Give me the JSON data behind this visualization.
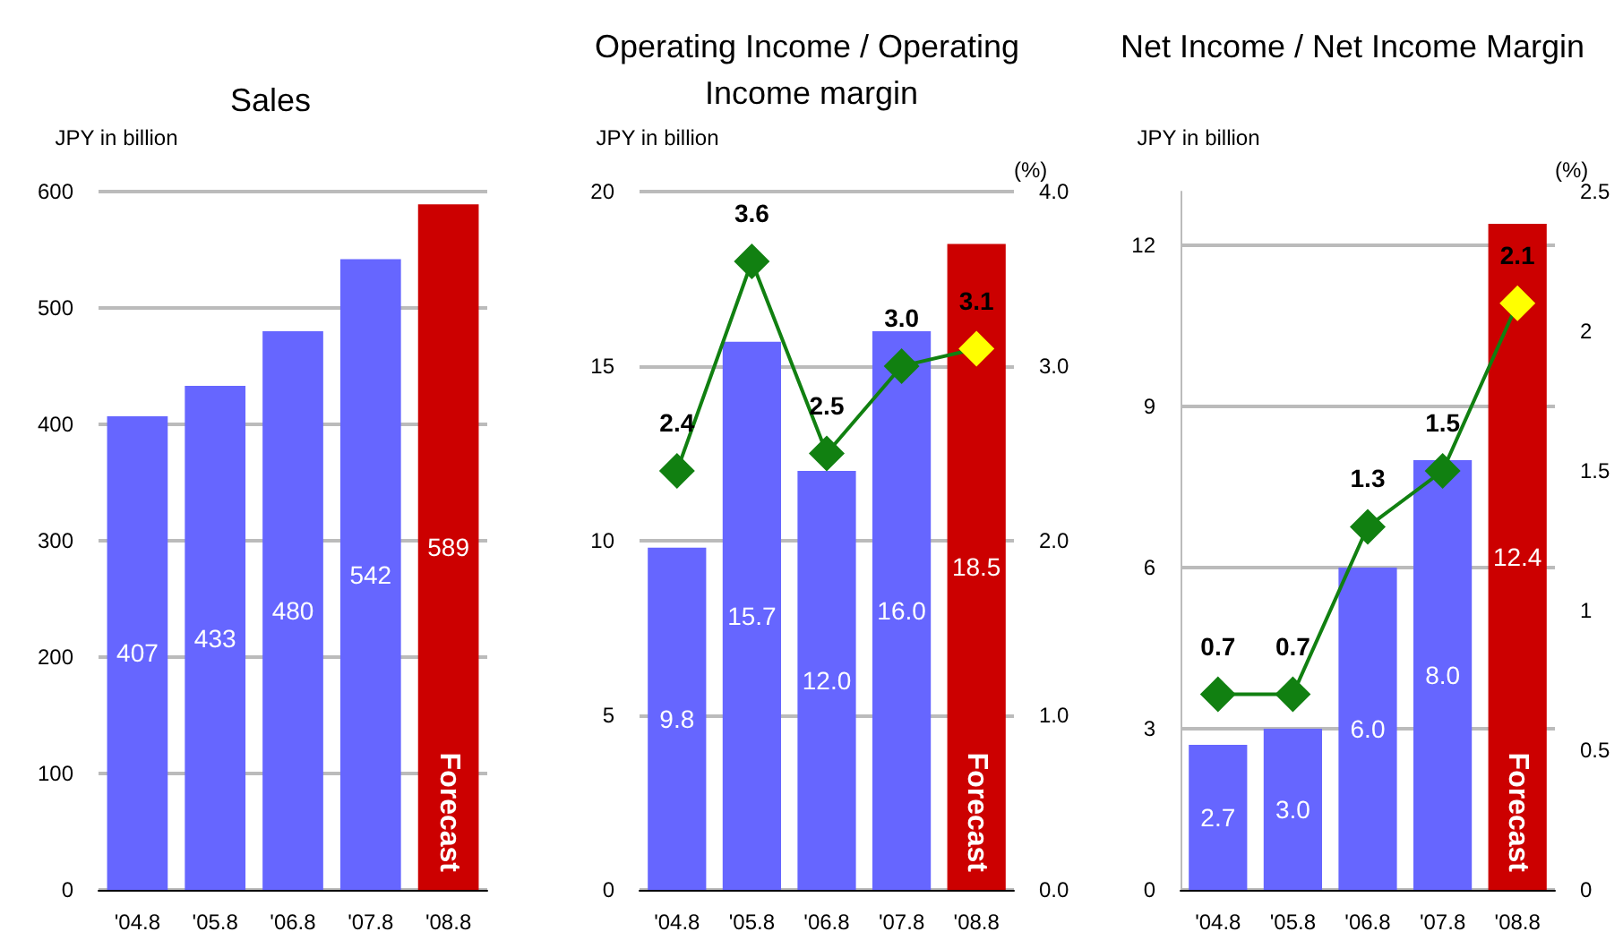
{
  "chart_data": [
    {
      "type": "bar",
      "title": "Sales",
      "ylabel": "JPY in billion",
      "categories": [
        "'04.8",
        "'05.8",
        "'06.8",
        "'07.8",
        "'08.8"
      ],
      "series": [
        {
          "values": [
            407,
            433,
            480,
            542,
            589
          ],
          "colors": [
            "#6666ff",
            "#6666ff",
            "#6666ff",
            "#6666ff",
            "#cc0000"
          ]
        }
      ],
      "data_labels": true,
      "ylim": [
        0,
        600
      ],
      "yticks": [
        0,
        100,
        200,
        300,
        400,
        500,
        600
      ],
      "grid": "y",
      "annotations": [
        "Forecast"
      ]
    },
    {
      "type": "bar",
      "title": "Operating Income / Operating Income margin",
      "ylabel": "JPY in billion",
      "y2label": "(%)",
      "categories": [
        "'04.8",
        "'05.8",
        "'06.8",
        "'07.8",
        "'08.8"
      ],
      "series": [
        {
          "values": [
            9.8,
            15.7,
            12.0,
            16.0,
            18.5
          ],
          "colors": [
            "#6666ff",
            "#6666ff",
            "#6666ff",
            "#6666ff",
            "#cc0000"
          ],
          "value_labels": [
            "9.8",
            "15.7",
            "12.0",
            "16.0",
            "18.5"
          ]
        },
        {
          "type": "line",
          "axis": "y2",
          "color": "#118011",
          "colors": [
            "#118011",
            "#118011",
            "#118011",
            "#118011",
            "#ffff00"
          ],
          "values": [
            2.4,
            3.6,
            2.5,
            3.0,
            3.1
          ],
          "value_labels": [
            "2.4",
            "3.6",
            "2.5",
            "3.0",
            "3.1"
          ]
        }
      ],
      "marker": "diamond",
      "ylim": [
        0,
        20
      ],
      "yticks": [
        0,
        5,
        10,
        15,
        20
      ],
      "y2lim": [
        0,
        4
      ],
      "y2ticks": [
        {
          "value": 0,
          "label": "0.0"
        },
        {
          "value": 1,
          "label": "1.0"
        },
        {
          "value": 2,
          "label": "2.0"
        },
        {
          "value": 3,
          "label": "3.0"
        },
        {
          "value": 4,
          "label": "4.0"
        }
      ],
      "grid": "y",
      "annotations": [
        "Forecast"
      ]
    },
    {
      "type": "bar",
      "title": "Net Income / Net Income Margin",
      "ylabel": "JPY in billion",
      "y2label": "(%)",
      "categories": [
        "'04.8",
        "'05.8",
        "'06.8",
        "'07.8",
        "'08.8"
      ],
      "series": [
        {
          "values": [
            2.7,
            3.0,
            6.0,
            8.0,
            12.4
          ],
          "colors": [
            "#6666ff",
            "#6666ff",
            "#6666ff",
            "#6666ff",
            "#cc0000"
          ],
          "value_labels": [
            "2.7",
            "3.0",
            "6.0",
            "8.0",
            "12.4"
          ]
        },
        {
          "type": "line",
          "axis": "y2",
          "color": "#118011",
          "colors": [
            "#118011",
            "#118011",
            "#118011",
            "#118011",
            "#ffff00"
          ],
          "values": [
            0.7,
            0.7,
            1.3,
            1.5,
            2.1
          ],
          "value_labels": [
            "0.7",
            "0.7",
            "1.3",
            "1.5",
            "2.1"
          ]
        }
      ],
      "marker": "diamond",
      "ylim": [
        0,
        13
      ],
      "yticks": [
        0,
        3,
        6,
        9,
        12
      ],
      "y2lim": [
        0,
        2.5
      ],
      "y2ticks": [
        0,
        0.5,
        1,
        1.5,
        2,
        2.5
      ],
      "grid": "y",
      "annotations": [
        "Forecast"
      ]
    }
  ]
}
